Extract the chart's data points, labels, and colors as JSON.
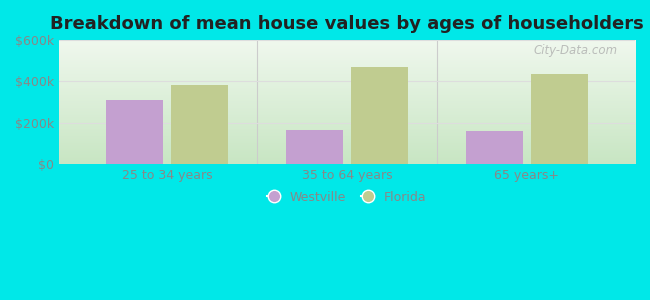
{
  "title": "Breakdown of mean house values by ages of householders",
  "categories": [
    "25 to 34 years",
    "35 to 64 years",
    "65 years+"
  ],
  "westville_values": [
    310000,
    165000,
    160000
  ],
  "florida_values": [
    385000,
    470000,
    435000
  ],
  "westville_color": "#c4a0d0",
  "florida_color": "#c0cc90",
  "ylim": [
    0,
    600000
  ],
  "yticks": [
    0,
    200000,
    400000,
    600000
  ],
  "ytick_labels": [
    "$0",
    "$200k",
    "$400k",
    "$600k"
  ],
  "legend_westville": "Westville",
  "legend_florida": "Florida",
  "background_outer": "#00e8e8",
  "background_inner_top": "#f0f8f0",
  "background_inner_bottom": "#d0eecc",
  "bar_width": 0.32,
  "title_fontsize": 13,
  "watermark": "City-Data.com",
  "tick_color": "#888888",
  "grid_color": "#dddddd"
}
